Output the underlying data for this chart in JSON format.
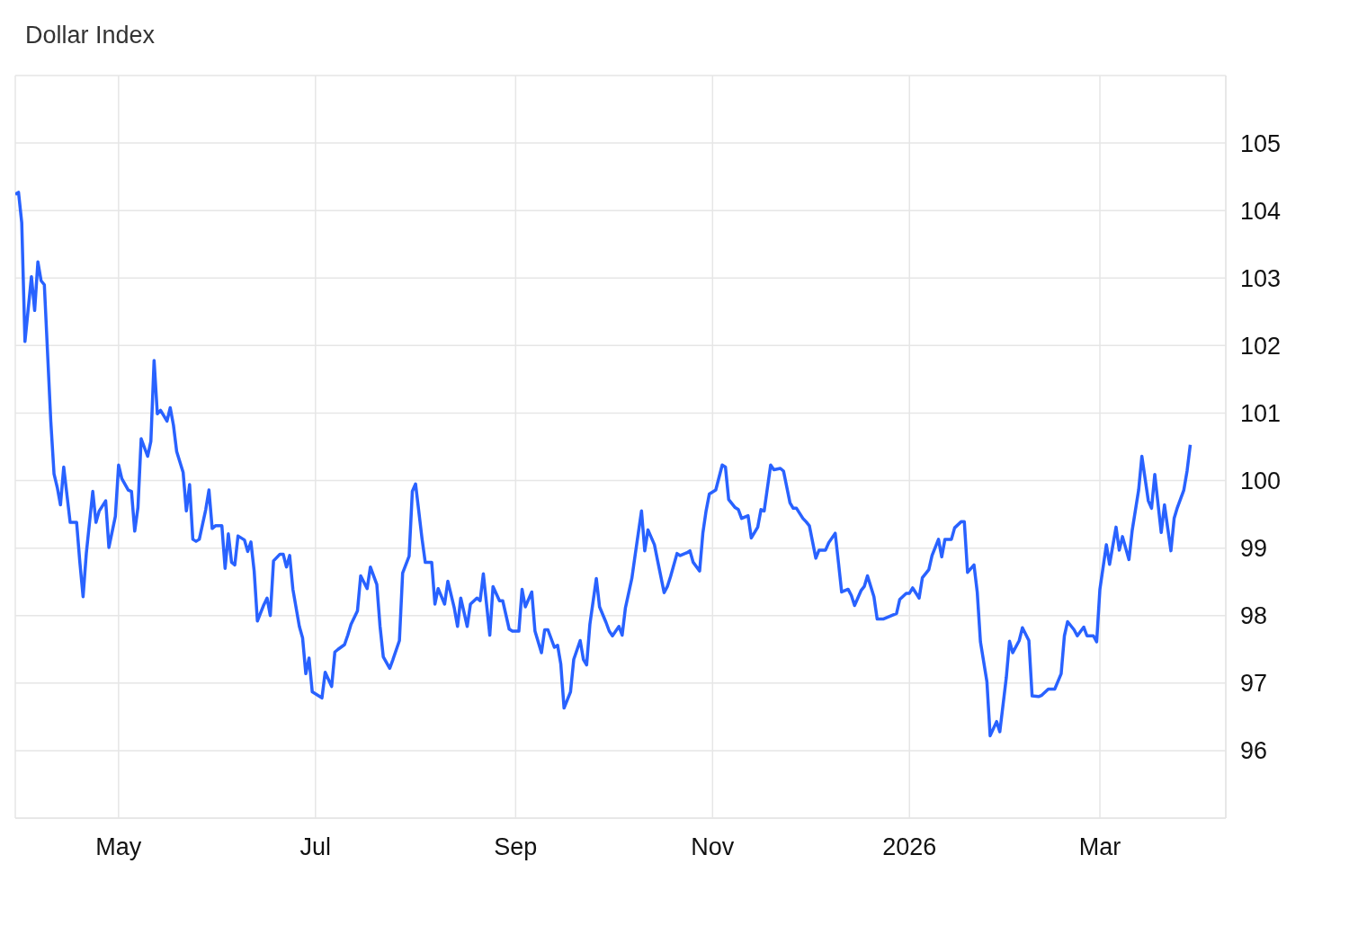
{
  "chart_data": {
    "type": "line",
    "title": "Dollar Index",
    "color": "#2962ff",
    "grid": true,
    "xlim": [
      "2025-03-30",
      "2026-04-09"
    ],
    "xticks": [
      {
        "value": "2025-05-01",
        "label": "May"
      },
      {
        "value": "2025-07-01",
        "label": "Jul"
      },
      {
        "value": "2025-09-01",
        "label": "Sep"
      },
      {
        "value": "2025-11-01",
        "label": "Nov"
      },
      {
        "value": "2026-01-01",
        "label": "2026"
      },
      {
        "value": "2026-03-01",
        "label": "Mar"
      }
    ],
    "ylim": [
      95,
      106
    ],
    "yticks": [
      96,
      97,
      98,
      99,
      100,
      101,
      102,
      103,
      104,
      105
    ],
    "x": [
      "2025-03-30",
      "2025-03-31",
      "2025-04-01",
      "2025-04-02",
      "2025-04-04",
      "2025-04-05",
      "2025-04-06",
      "2025-04-07",
      "2025-04-08",
      "2025-04-10",
      "2025-04-11",
      "2025-04-12",
      "2025-04-13",
      "2025-04-14",
      "2025-04-16",
      "2025-04-18",
      "2025-04-19",
      "2025-04-20",
      "2025-04-21",
      "2025-04-23",
      "2025-04-24",
      "2025-04-25",
      "2025-04-27",
      "2025-04-28",
      "2025-04-30",
      "2025-05-01",
      "2025-05-02",
      "2025-05-04",
      "2025-05-05",
      "2025-05-06",
      "2025-05-07",
      "2025-05-08",
      "2025-05-10",
      "2025-05-11",
      "2025-05-12",
      "2025-05-13",
      "2025-05-14",
      "2025-05-16",
      "2025-05-17",
      "2025-05-18",
      "2025-05-19",
      "2025-05-21",
      "2025-05-22",
      "2025-05-23",
      "2025-05-24",
      "2025-05-25",
      "2025-05-26",
      "2025-05-28",
      "2025-05-29",
      "2025-05-30",
      "2025-05-31",
      "2025-06-02",
      "2025-06-03",
      "2025-06-04",
      "2025-06-05",
      "2025-06-06",
      "2025-06-07",
      "2025-06-09",
      "2025-06-10",
      "2025-06-11",
      "2025-06-12",
      "2025-06-13",
      "2025-06-15",
      "2025-06-16",
      "2025-06-17",
      "2025-06-18",
      "2025-06-20",
      "2025-06-21",
      "2025-06-22",
      "2025-06-23",
      "2025-06-24",
      "2025-06-26",
      "2025-06-27",
      "2025-06-28",
      "2025-06-29",
      "2025-06-30",
      "2025-07-03",
      "2025-07-04",
      "2025-07-06",
      "2025-07-07",
      "2025-07-08",
      "2025-07-10",
      "2025-07-11",
      "2025-07-12",
      "2025-07-14",
      "2025-07-15",
      "2025-07-17",
      "2025-07-18",
      "2025-07-20",
      "2025-07-21",
      "2025-07-22",
      "2025-07-24",
      "2025-07-25",
      "2025-07-27",
      "2025-07-28",
      "2025-07-30",
      "2025-07-31",
      "2025-08-01",
      "2025-08-03",
      "2025-08-04",
      "2025-08-06",
      "2025-08-07",
      "2025-08-08",
      "2025-08-10",
      "2025-08-11",
      "2025-08-13",
      "2025-08-14",
      "2025-08-15",
      "2025-08-17",
      "2025-08-18",
      "2025-08-20",
      "2025-08-21",
      "2025-08-22",
      "2025-08-24",
      "2025-08-25",
      "2025-08-27",
      "2025-08-28",
      "2025-08-30",
      "2025-08-31",
      "2025-09-02",
      "2025-09-03",
      "2025-09-04",
      "2025-09-06",
      "2025-09-07",
      "2025-09-09",
      "2025-09-10",
      "2025-09-11",
      "2025-09-13",
      "2025-09-14",
      "2025-09-15",
      "2025-09-16",
      "2025-09-18",
      "2025-09-19",
      "2025-09-21",
      "2025-09-22",
      "2025-09-23",
      "2025-09-24",
      "2025-09-26",
      "2025-09-27",
      "2025-09-29",
      "2025-09-30",
      "2025-10-01",
      "2025-10-03",
      "2025-10-04",
      "2025-10-05",
      "2025-10-07",
      "2025-10-08",
      "2025-10-10",
      "2025-10-11",
      "2025-10-12",
      "2025-10-14",
      "2025-10-15",
      "2025-10-17",
      "2025-10-18",
      "2025-10-19",
      "2025-10-21",
      "2025-10-22",
      "2025-10-24",
      "2025-10-25",
      "2025-10-26",
      "2025-10-28",
      "2025-10-29",
      "2025-10-30",
      "2025-10-31",
      "2025-11-02",
      "2025-11-04",
      "2025-11-05",
      "2025-11-06",
      "2025-11-08",
      "2025-11-09",
      "2025-11-10",
      "2025-11-12",
      "2025-11-13",
      "2025-11-15",
      "2025-11-16",
      "2025-11-17",
      "2025-11-19",
      "2025-11-20",
      "2025-11-22",
      "2025-11-23",
      "2025-11-25",
      "2025-11-26",
      "2025-11-27",
      "2025-11-29",
      "2025-11-30",
      "2025-12-01",
      "2025-12-03",
      "2025-12-04",
      "2025-12-06",
      "2025-12-07",
      "2025-12-09",
      "2025-12-10",
      "2025-12-11",
      "2025-12-13",
      "2025-12-14",
      "2025-12-15",
      "2025-12-17",
      "2025-12-18",
      "2025-12-19",
      "2025-12-21",
      "2025-12-22",
      "2025-12-24",
      "2025-12-25",
      "2025-12-27",
      "2025-12-28",
      "2025-12-29",
      "2025-12-31",
      "2026-01-01",
      "2026-01-02",
      "2026-01-04",
      "2026-01-05",
      "2026-01-07",
      "2026-01-08",
      "2026-01-10",
      "2026-01-11",
      "2026-01-12",
      "2026-01-14",
      "2026-01-15",
      "2026-01-17",
      "2026-01-18",
      "2026-01-19",
      "2026-01-21",
      "2026-01-22",
      "2026-01-23",
      "2026-01-25",
      "2026-01-26",
      "2026-01-28",
      "2026-01-29",
      "2026-01-31",
      "2026-02-01",
      "2026-02-02",
      "2026-02-04",
      "2026-02-05",
      "2026-02-07",
      "2026-02-08",
      "2026-02-10",
      "2026-02-11",
      "2026-02-13",
      "2026-02-14",
      "2026-02-15",
      "2026-02-17",
      "2026-02-18",
      "2026-02-19",
      "2026-02-21",
      "2026-02-22",
      "2026-02-24",
      "2026-02-25",
      "2026-02-27",
      "2026-02-28",
      "2026-03-01",
      "2026-03-03",
      "2026-03-04",
      "2026-03-06",
      "2026-03-07",
      "2026-03-08",
      "2026-03-10",
      "2026-03-11",
      "2026-03-13",
      "2026-03-14",
      "2026-03-16",
      "2026-03-17",
      "2026-03-18",
      "2026-03-20",
      "2026-03-21",
      "2026-03-23",
      "2026-03-24",
      "2026-03-25",
      "2026-03-27",
      "2026-03-28",
      "2026-03-29"
    ],
    "values": [
      104.24,
      104.27,
      103.82,
      102.06,
      103.02,
      102.52,
      103.24,
      102.96,
      102.9,
      100.88,
      100.1,
      99.9,
      99.64,
      100.2,
      99.38,
      99.38,
      98.79,
      98.28,
      98.92,
      99.84,
      99.38,
      99.55,
      99.7,
      99.01,
      99.47,
      100.23,
      100.03,
      99.86,
      99.84,
      99.25,
      99.6,
      100.62,
      100.36,
      100.58,
      101.78,
      100.99,
      101.04,
      100.88,
      101.08,
      100.82,
      100.43,
      100.12,
      99.55,
      99.94,
      99.13,
      99.1,
      99.13,
      99.57,
      99.86,
      99.29,
      99.33,
      99.33,
      98.7,
      99.21,
      98.79,
      98.75,
      99.18,
      99.12,
      98.95,
      99.09,
      98.66,
      97.92,
      98.16,
      98.26,
      98.0,
      98.81,
      98.91,
      98.91,
      98.72,
      98.89,
      98.39,
      97.84,
      97.67,
      97.14,
      97.37,
      96.87,
      96.78,
      97.16,
      96.95,
      97.46,
      97.5,
      97.57,
      97.71,
      97.87,
      98.07,
      98.59,
      98.4,
      98.72,
      98.46,
      97.84,
      97.39,
      97.22,
      97.35,
      97.63,
      98.63,
      98.88,
      99.84,
      99.95,
      99.14,
      98.79,
      98.79,
      98.17,
      98.4,
      98.17,
      98.51,
      98.11,
      97.84,
      98.26,
      97.84,
      98.17,
      98.26,
      98.22,
      98.62,
      97.71,
      98.43,
      98.22,
      98.22,
      97.8,
      97.77,
      97.77,
      98.39,
      98.13,
      98.35,
      97.77,
      97.45,
      97.79,
      97.79,
      97.53,
      97.56,
      97.28,
      96.63,
      96.87,
      97.35,
      97.63,
      97.35,
      97.27,
      97.87,
      98.55,
      98.13,
      97.9,
      97.77,
      97.7,
      97.84,
      97.71,
      98.11,
      98.55,
      98.89,
      99.55,
      98.96,
      99.27,
      99.05,
      98.81,
      98.34,
      98.43,
      98.58,
      98.92,
      98.89,
      98.93,
      98.96,
      98.79,
      98.66,
      99.22,
      99.55,
      99.8,
      99.86,
      100.23,
      100.2,
      99.72,
      99.6,
      99.57,
      99.44,
      99.48,
      99.15,
      99.31,
      99.57,
      99.55,
      100.23,
      100.16,
      100.18,
      100.14,
      99.67,
      99.59,
      99.59,
      99.44,
      99.39,
      99.33,
      98.85,
      98.97,
      98.97,
      99.08,
      99.22,
      98.79,
      98.35,
      98.39,
      98.3,
      98.15,
      98.37,
      98.43,
      98.59,
      98.28,
      97.95,
      97.95,
      97.97,
      98.01,
      98.03,
      98.24,
      98.33,
      98.33,
      98.41,
      98.26,
      98.56,
      98.68,
      98.89,
      99.13,
      98.87,
      99.13,
      99.13,
      99.3,
      99.39,
      99.39,
      98.64,
      98.75,
      98.35,
      97.61,
      97.02,
      96.22,
      96.43,
      96.28,
      97.08,
      97.62,
      97.45,
      97.63,
      97.82,
      97.63,
      96.81,
      96.8,
      96.82,
      96.91,
      96.91,
      96.91,
      97.14,
      97.7,
      97.91,
      97.79,
      97.7,
      97.83,
      97.7,
      97.7,
      97.61,
      98.39,
      99.05,
      98.76,
      99.31,
      98.97,
      99.17,
      98.83,
      99.26,
      99.86,
      100.36,
      99.7,
      99.59,
      100.09,
      99.23,
      99.64,
      98.96,
      99.44,
      99.6,
      99.86,
      100.14,
      100.53
    ]
  }
}
